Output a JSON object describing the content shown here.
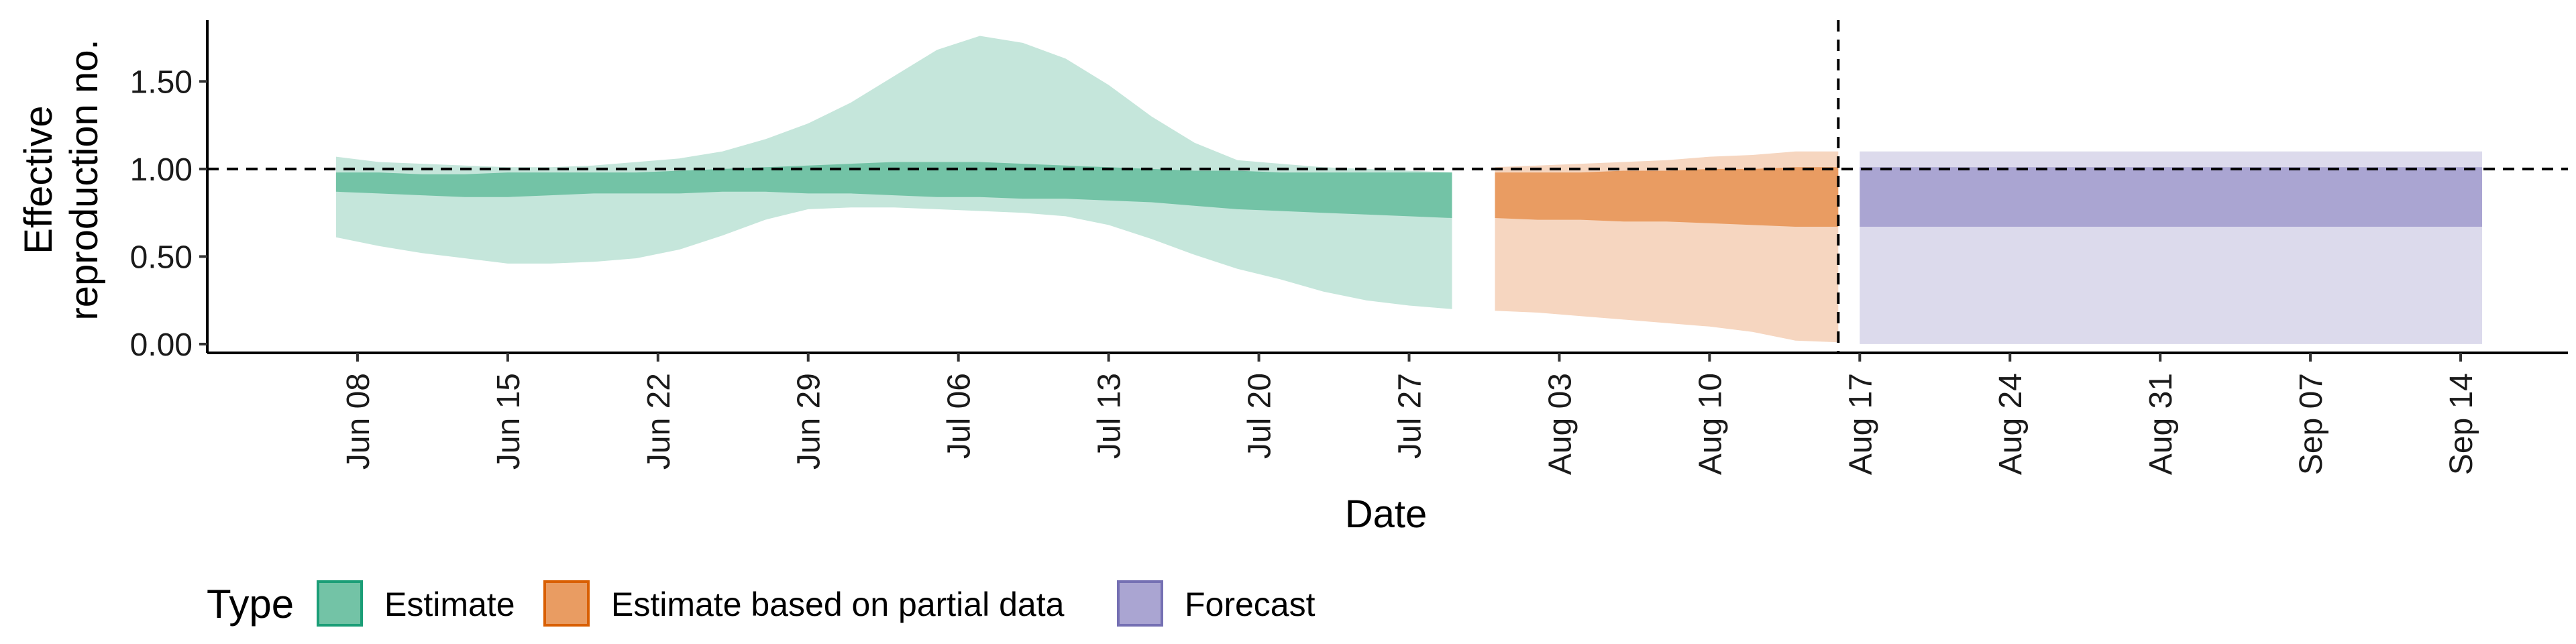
{
  "chart_data": {
    "type": "area",
    "xlabel": "Date",
    "ylabel_lines": [
      "Effective",
      "reproduction no."
    ],
    "ylim": [
      -0.05,
      1.85
    ],
    "yticks": [
      0,
      0.5,
      1,
      1.5
    ],
    "ytick_labels": [
      "0.00",
      "0.50",
      "1.00",
      "1.50"
    ],
    "xlim": [
      "2020-06-01",
      "2020-09-19"
    ],
    "xticks": [
      "2020-06-08",
      "2020-06-15",
      "2020-06-22",
      "2020-06-29",
      "2020-07-06",
      "2020-07-13",
      "2020-07-20",
      "2020-07-27",
      "2020-08-03",
      "2020-08-10",
      "2020-08-17",
      "2020-08-24",
      "2020-08-31",
      "2020-09-07",
      "2020-09-14"
    ],
    "xtick_labels": [
      "Jun 08",
      "Jun 15",
      "Jun 22",
      "Jun 29",
      "Jul 06",
      "Jul 13",
      "Jul 20",
      "Jul 27",
      "Aug 03",
      "Aug 10",
      "Aug 17",
      "Aug 24",
      "Aug 31",
      "Sep 07",
      "Sep 14"
    ],
    "reference_hline": 1.0,
    "reference_vline": "2020-08-16",
    "legend": {
      "title": "Type",
      "position": "bottom-left",
      "items": [
        {
          "label": "Estimate",
          "fill": "#73c3a6",
          "stroke": "#1b9e77"
        },
        {
          "label": "Estimate based on partial data",
          "fill": "#e99c62",
          "stroke": "#d95f02"
        },
        {
          "label": "Forecast",
          "fill": "#aaa5d2",
          "stroke": "#7570b3"
        }
      ]
    },
    "series": [
      {
        "name": "Estimate",
        "color_outer": "#c5e6db",
        "color_inner": "#73c3a6",
        "x": [
          "2020-06-07",
          "2020-06-09",
          "2020-06-11",
          "2020-06-13",
          "2020-06-15",
          "2020-06-17",
          "2020-06-19",
          "2020-06-21",
          "2020-06-23",
          "2020-06-25",
          "2020-06-27",
          "2020-06-29",
          "2020-07-01",
          "2020-07-03",
          "2020-07-05",
          "2020-07-07",
          "2020-07-09",
          "2020-07-11",
          "2020-07-13",
          "2020-07-15",
          "2020-07-17",
          "2020-07-19",
          "2020-07-21",
          "2020-07-23",
          "2020-07-25",
          "2020-07-27",
          "2020-07-29"
        ],
        "outer_upper": [
          1.07,
          1.04,
          1.03,
          1.02,
          1.01,
          1.01,
          1.02,
          1.04,
          1.06,
          1.1,
          1.17,
          1.26,
          1.38,
          1.53,
          1.68,
          1.76,
          1.72,
          1.63,
          1.48,
          1.3,
          1.15,
          1.05,
          1.03,
          1.01,
          1.0,
          0.99,
          0.98
        ],
        "outer_lower": [
          0.61,
          0.56,
          0.52,
          0.49,
          0.46,
          0.46,
          0.47,
          0.49,
          0.54,
          0.62,
          0.71,
          0.77,
          0.78,
          0.78,
          0.77,
          0.76,
          0.75,
          0.73,
          0.68,
          0.6,
          0.51,
          0.43,
          0.37,
          0.3,
          0.25,
          0.22,
          0.2
        ],
        "inner_upper": [
          0.98,
          0.98,
          0.97,
          0.97,
          0.98,
          0.98,
          0.98,
          0.98,
          0.99,
          1.0,
          1.01,
          1.02,
          1.03,
          1.04,
          1.04,
          1.04,
          1.03,
          1.02,
          1.01,
          1.0,
          0.99,
          0.99,
          0.98,
          0.98,
          0.98,
          0.98,
          0.98
        ],
        "inner_lower": [
          0.87,
          0.86,
          0.85,
          0.84,
          0.84,
          0.85,
          0.86,
          0.86,
          0.86,
          0.87,
          0.87,
          0.86,
          0.86,
          0.85,
          0.84,
          0.84,
          0.83,
          0.83,
          0.82,
          0.81,
          0.79,
          0.77,
          0.76,
          0.75,
          0.74,
          0.73,
          0.72
        ]
      },
      {
        "name": "Estimate based on partial data",
        "color_outer": "#f6d6c0",
        "color_inner": "#e99c62",
        "x": [
          "2020-07-31",
          "2020-08-02",
          "2020-08-04",
          "2020-08-06",
          "2020-08-08",
          "2020-08-10",
          "2020-08-12",
          "2020-08-14",
          "2020-08-16"
        ],
        "outer_upper": [
          1.01,
          1.02,
          1.03,
          1.04,
          1.05,
          1.07,
          1.08,
          1.1,
          1.1
        ],
        "outer_lower": [
          0.19,
          0.18,
          0.16,
          0.14,
          0.12,
          0.1,
          0.07,
          0.02,
          0.01
        ],
        "inner_upper": [
          0.98,
          0.98,
          0.98,
          0.99,
          0.99,
          1.0,
          1.0,
          1.01,
          1.01
        ],
        "inner_lower": [
          0.72,
          0.71,
          0.71,
          0.7,
          0.7,
          0.69,
          0.68,
          0.67,
          0.67
        ]
      },
      {
        "name": "Forecast",
        "color_outer": "#dcdaec",
        "color_inner": "#aaa5d2",
        "x": [
          "2020-08-17",
          "2020-09-15"
        ],
        "outer_upper": [
          1.1,
          1.1
        ],
        "outer_lower": [
          0.0,
          0.0
        ],
        "inner_upper": [
          1.01,
          1.01
        ],
        "inner_lower": [
          0.67,
          0.67
        ]
      }
    ]
  }
}
